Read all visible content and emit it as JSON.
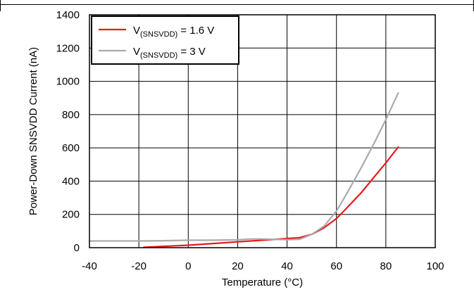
{
  "chart_data": {
    "type": "line",
    "xlabel": "Temperature (°C)",
    "ylabel": "Power-Down SNSVDD Current (nA)",
    "xlim": [
      -40,
      100
    ],
    "ylim": [
      0,
      1400
    ],
    "xticks": [
      -40,
      -20,
      0,
      20,
      40,
      60,
      80,
      100
    ],
    "yticks": [
      0,
      200,
      400,
      600,
      800,
      1000,
      1200,
      1400
    ],
    "grid": true,
    "legend_position": "top-left",
    "series": [
      {
        "name": "1.6 V",
        "legend": {
          "prefix": "V",
          "subscript": "(SNSVDD)",
          "suffix": " = 1.6 V"
        },
        "color": "#e8191b",
        "x": [
          -18,
          -10,
          0,
          10,
          20,
          30,
          40,
          45,
          50,
          55,
          60,
          63,
          70,
          75,
          80,
          85
        ],
        "y": [
          2,
          8,
          15,
          25,
          35,
          45,
          55,
          60,
          80,
          120,
          175,
          220,
          330,
          420,
          510,
          605
        ]
      },
      {
        "name": "3 V",
        "legend": {
          "prefix": "V",
          "subscript": "(SNSVDD)",
          "suffix": " = 3 V"
        },
        "color": "#aaaaaa",
        "x": [
          -40,
          -20,
          -10,
          0,
          10,
          20,
          25,
          30,
          40,
          45,
          50,
          55,
          60,
          64,
          70,
          75,
          80,
          85
        ],
        "y": [
          40,
          40,
          42,
          45,
          45,
          47,
          52,
          52,
          48,
          50,
          80,
          130,
          220,
          320,
          480,
          620,
          770,
          930
        ]
      }
    ]
  }
}
